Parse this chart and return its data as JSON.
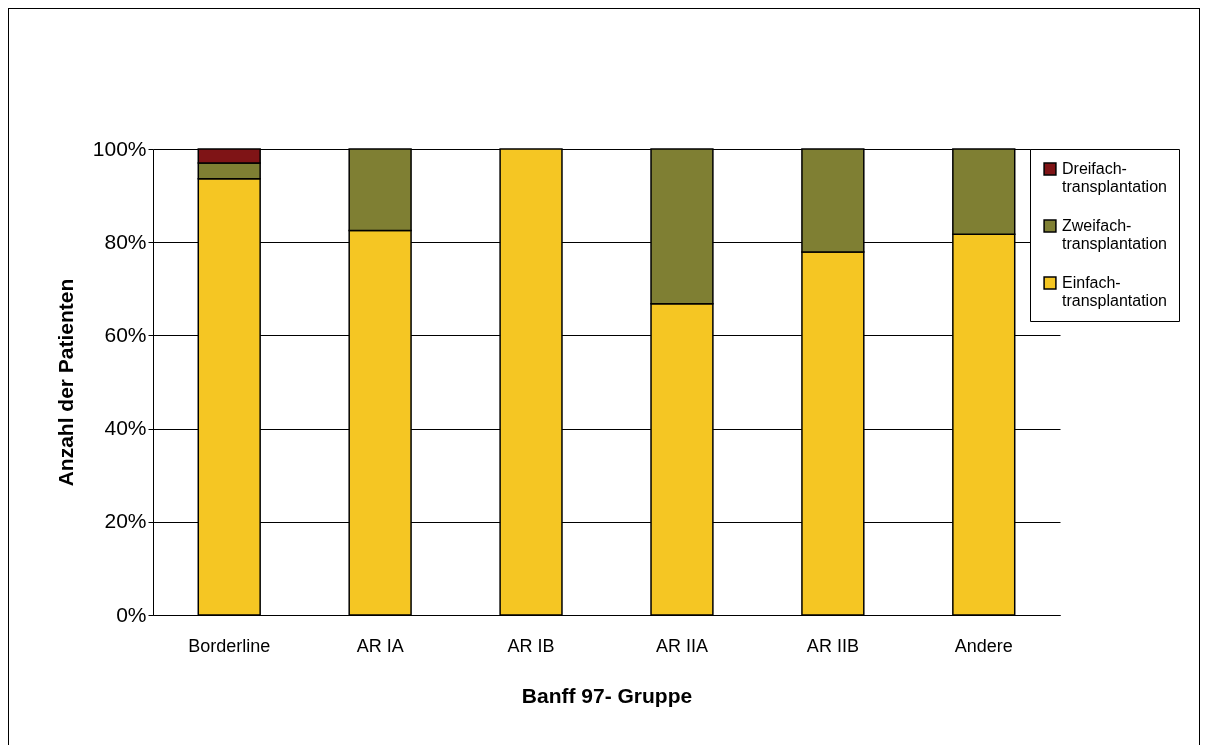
{
  "chart_data": {
    "type": "bar",
    "stacked": true,
    "xlabel": "Banff 97- Gruppe",
    "ylabel": "Anzahl der Patienten",
    "categories": [
      "Borderline",
      "AR IA",
      "AR IB",
      "AR IIA",
      "AR IIB",
      "Andere"
    ],
    "series": [
      {
        "name": "Einfach-transplantation",
        "color": "#f5c623",
        "values": [
          93.6,
          82.5,
          100,
          66.8,
          77.9,
          81.7
        ]
      },
      {
        "name": "Zweifach-transplantation",
        "color": "#7f7f33",
        "values": [
          3.4,
          17.5,
          null,
          33.2,
          22.1,
          18.3
        ]
      },
      {
        "name": "Dreifach-transplantation",
        "color": "#7f1416",
        "values": [
          3.0,
          null,
          null,
          null,
          null,
          null
        ]
      }
    ],
    "ylim": [
      0,
      100
    ],
    "yticks": [
      {
        "value": 0,
        "label": "0%"
      },
      {
        "value": 20,
        "label": "20%"
      },
      {
        "value": 40,
        "label": "40%"
      },
      {
        "value": 60,
        "label": "60%"
      },
      {
        "value": 80,
        "label": "80%"
      },
      {
        "value": 100,
        "label": "100%"
      }
    ],
    "grid": "y",
    "legend": "right"
  }
}
